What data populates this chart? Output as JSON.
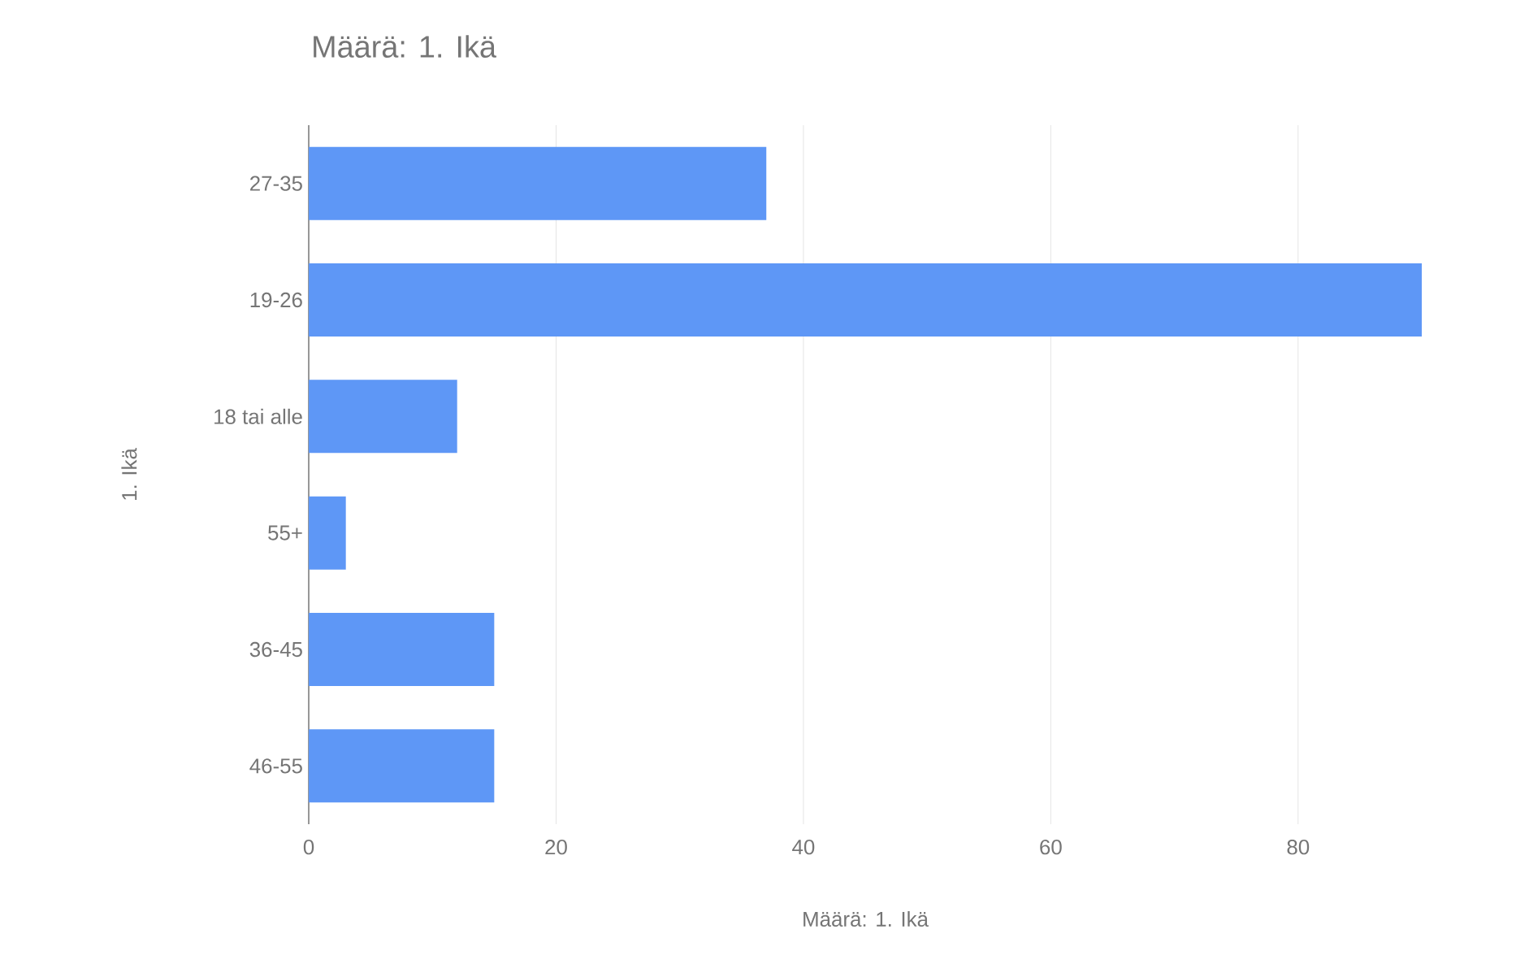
{
  "chart_data": {
    "type": "bar",
    "orientation": "horizontal",
    "title": "Määrä: 1. Ikä",
    "xlabel": "Määrä: 1. Ikä",
    "ylabel": "1. Ikä",
    "categories": [
      "27-35",
      "19-26",
      "18 tai alle",
      "55+",
      "36-45",
      "46-55"
    ],
    "values": [
      37,
      90,
      12,
      3,
      15,
      15
    ],
    "color": "#5e97f6",
    "xlim": [
      0,
      90
    ],
    "xticks": [
      0,
      20,
      40,
      60,
      80
    ],
    "grid": "x"
  }
}
